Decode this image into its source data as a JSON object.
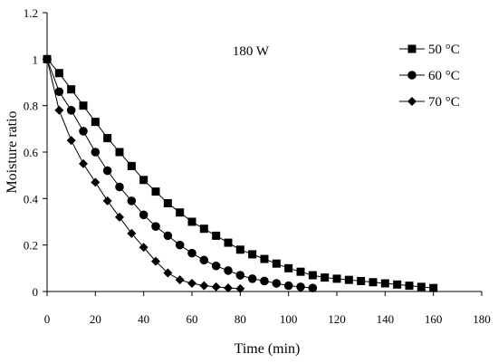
{
  "chart_data": {
    "type": "line",
    "title": "",
    "annotation": "180 W",
    "xlabel": "Time (min)",
    "ylabel": "Moisture ratio",
    "xlim": [
      0,
      180
    ],
    "ylim": [
      0,
      1.2
    ],
    "x_ticks": [
      "0",
      "20",
      "40",
      "60",
      "80",
      "100",
      "120",
      "140",
      "160",
      "180"
    ],
    "y_ticks": [
      "0",
      "0.2",
      "0.4",
      "0.6",
      "0.8",
      "1",
      "1.2"
    ],
    "grid": false,
    "legend_position": "top-right",
    "series": [
      {
        "name": "50 °C",
        "marker": "square",
        "x": [
          0,
          5,
          10,
          15,
          20,
          25,
          30,
          35,
          40,
          45,
          50,
          55,
          60,
          65,
          70,
          75,
          80,
          85,
          90,
          95,
          100,
          105,
          110,
          115,
          120,
          125,
          130,
          135,
          140,
          145,
          150,
          155,
          160
        ],
        "y": [
          1.0,
          0.94,
          0.87,
          0.8,
          0.73,
          0.66,
          0.6,
          0.54,
          0.48,
          0.43,
          0.38,
          0.34,
          0.3,
          0.27,
          0.24,
          0.21,
          0.18,
          0.16,
          0.14,
          0.12,
          0.1,
          0.085,
          0.07,
          0.06,
          0.055,
          0.05,
          0.045,
          0.04,
          0.035,
          0.03,
          0.025,
          0.02,
          0.015
        ]
      },
      {
        "name": "60 °C",
        "marker": "circle",
        "x": [
          0,
          5,
          10,
          15,
          20,
          25,
          30,
          35,
          40,
          45,
          50,
          55,
          60,
          65,
          70,
          75,
          80,
          85,
          90,
          95,
          100,
          105,
          110
        ],
        "y": [
          1.0,
          0.86,
          0.78,
          0.69,
          0.6,
          0.52,
          0.45,
          0.39,
          0.33,
          0.28,
          0.24,
          0.2,
          0.165,
          0.135,
          0.11,
          0.09,
          0.07,
          0.055,
          0.045,
          0.035,
          0.025,
          0.02,
          0.015
        ]
      },
      {
        "name": "70 °C",
        "marker": "diamond",
        "x": [
          0,
          5,
          10,
          15,
          20,
          25,
          30,
          35,
          40,
          45,
          50,
          55,
          60,
          65,
          70,
          75,
          80
        ],
        "y": [
          1.0,
          0.78,
          0.65,
          0.55,
          0.47,
          0.39,
          0.32,
          0.25,
          0.19,
          0.13,
          0.08,
          0.05,
          0.035,
          0.025,
          0.02,
          0.015,
          0.012
        ]
      }
    ]
  }
}
